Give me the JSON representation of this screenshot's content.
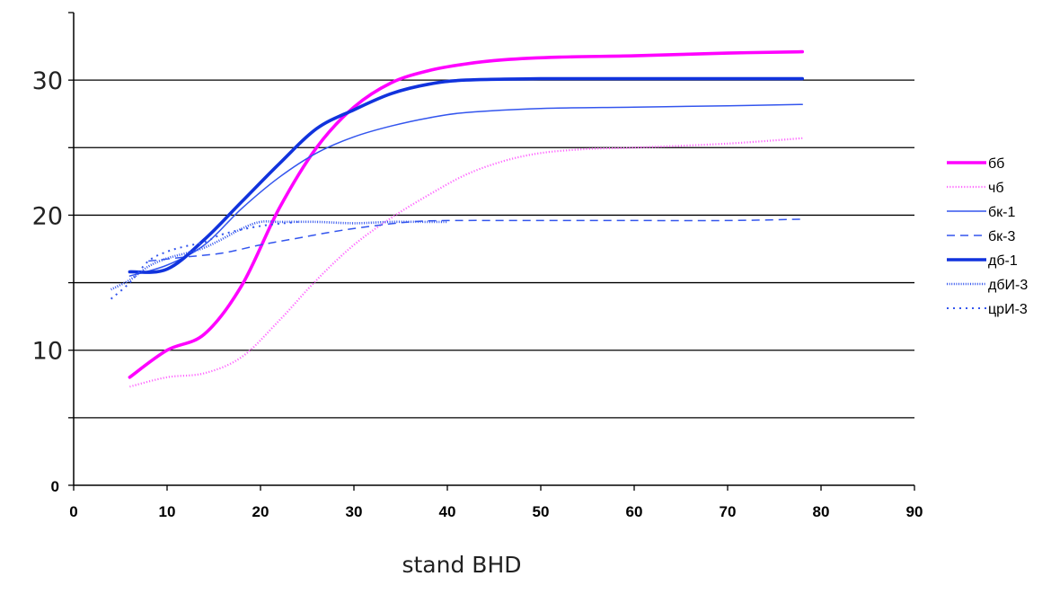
{
  "chart_data": {
    "type": "line",
    "title": "",
    "xlabel": "stand BHD",
    "ylabel": "",
    "xlim": [
      0,
      90
    ],
    "ylim": [
      0,
      35
    ],
    "x_ticks": [
      {
        "value": 0,
        "label": "0"
      },
      {
        "value": 10,
        "label": "10"
      },
      {
        "value": 20,
        "label": "20"
      },
      {
        "value": 30,
        "label": "30"
      },
      {
        "value": 40,
        "label": "40"
      },
      {
        "value": 50,
        "label": "50"
      },
      {
        "value": 60,
        "label": "60"
      },
      {
        "value": 70,
        "label": "70"
      },
      {
        "value": 80,
        "label": "80"
      },
      {
        "value": 90,
        "label": "90"
      }
    ],
    "y_tick_labels": [
      {
        "value": 0,
        "label": "0"
      },
      {
        "value": 10,
        "label": "10"
      },
      {
        "value": 20,
        "label": "20"
      },
      {
        "value": 30,
        "label": "30"
      }
    ],
    "y_gridlines": [
      5,
      10,
      15,
      20,
      25,
      30
    ],
    "grid": true,
    "legend_position": "right",
    "series": [
      {
        "name": "бб",
        "color": "#ff00ff",
        "style": "thick-solid",
        "x": [
          6,
          10,
          14,
          18,
          22,
          26,
          30,
          34,
          38,
          42,
          46,
          52,
          60,
          70,
          78
        ],
        "y": [
          8,
          10,
          11.2,
          14.8,
          20.5,
          25,
          28,
          29.8,
          30.7,
          31.2,
          31.5,
          31.7,
          31.8,
          32.0,
          32.1
        ]
      },
      {
        "name": "чб",
        "color": "#ff66ff",
        "style": "dotted",
        "x": [
          6,
          10,
          14,
          18,
          22,
          26,
          30,
          34,
          38,
          42,
          46,
          50,
          55,
          60,
          70,
          78
        ],
        "y": [
          7.3,
          8.0,
          8.3,
          9.5,
          12.2,
          15.2,
          17.8,
          19.8,
          21.5,
          23.0,
          24.0,
          24.6,
          24.9,
          25.0,
          25.3,
          25.7
        ]
      },
      {
        "name": "бк-1",
        "color": "#3355ee",
        "style": "thin-solid",
        "x": [
          6,
          10,
          14,
          18,
          22,
          26,
          30,
          34,
          38,
          42,
          50,
          60,
          70,
          78
        ],
        "y": [
          15.5,
          16.3,
          17.8,
          20.5,
          22.8,
          24.6,
          25.8,
          26.6,
          27.2,
          27.6,
          27.9,
          28.0,
          28.1,
          28.2
        ]
      },
      {
        "name": "бк-3",
        "color": "#3355ee",
        "style": "dashed",
        "x": [
          8,
          12,
          16,
          20,
          24,
          28,
          32,
          36,
          40,
          50,
          60,
          70,
          78
        ],
        "y": [
          16.6,
          16.9,
          17.2,
          17.8,
          18.3,
          18.8,
          19.2,
          19.5,
          19.6,
          19.6,
          19.6,
          19.6,
          19.7
        ]
      },
      {
        "name": "дб-1",
        "color": "#1133dd",
        "style": "thick-solid",
        "x": [
          6,
          10,
          14,
          18,
          22,
          26,
          30,
          34,
          38,
          42,
          50,
          60,
          70,
          78
        ],
        "y": [
          15.8,
          16.0,
          18.2,
          21.0,
          23.8,
          26.4,
          27.8,
          29.0,
          29.7,
          30.0,
          30.1,
          30.1,
          30.1,
          30.1
        ]
      },
      {
        "name": "дбИ-3",
        "color": "#3355ee",
        "style": "dense-dotted",
        "x": [
          4,
          6,
          8,
          10,
          14,
          18,
          20,
          22,
          26,
          30,
          34,
          38,
          40
        ],
        "y": [
          14.5,
          15.2,
          16.2,
          16.8,
          17.6,
          19.0,
          19.5,
          19.5,
          19.5,
          19.4,
          19.5,
          19.5,
          19.5
        ]
      },
      {
        "name": "црИ-3",
        "color": "#3355ee",
        "style": "sparse-dotted",
        "x": [
          4,
          6,
          8,
          10,
          12,
          14,
          16,
          20,
          24
        ],
        "y": [
          13.8,
          15.0,
          16.6,
          17.3,
          17.7,
          18.0,
          18.6,
          19.2,
          19.5
        ]
      }
    ]
  }
}
